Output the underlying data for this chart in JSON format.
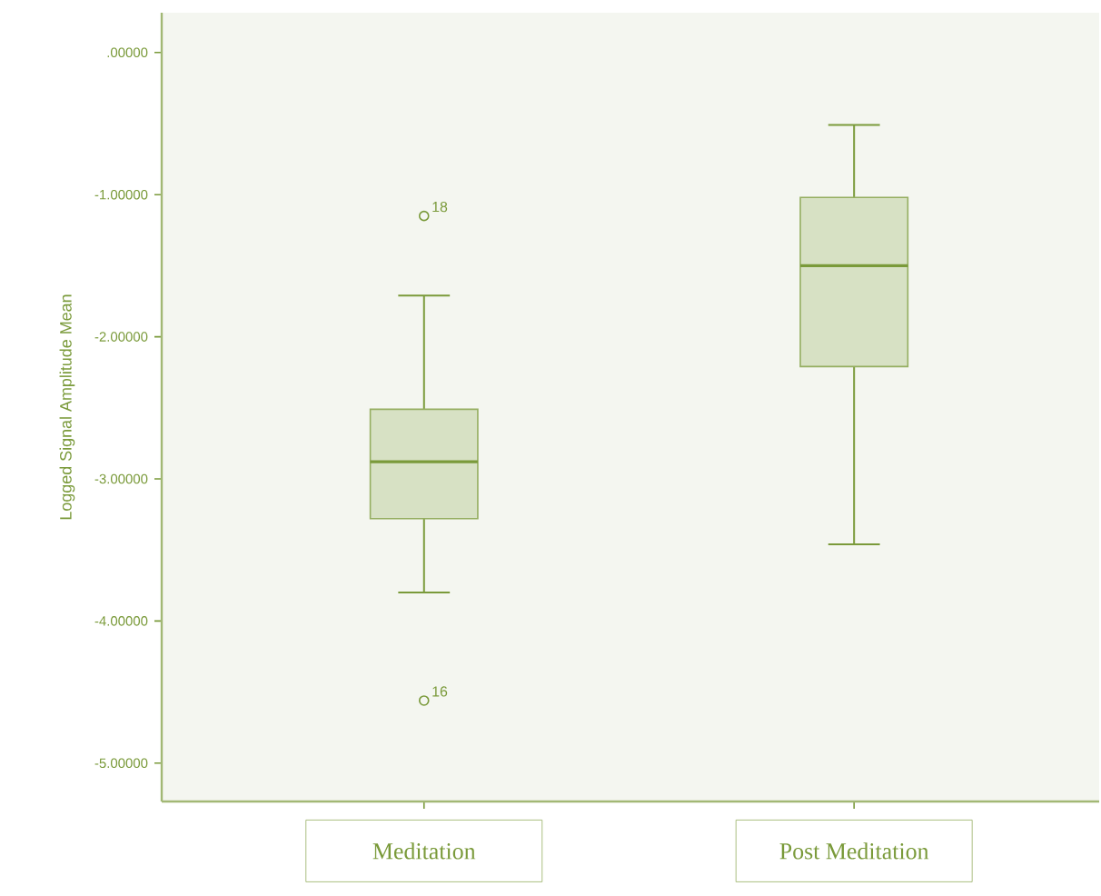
{
  "chart_data": {
    "type": "box",
    "ylabel": "Logged Signal Amplitude Mean",
    "categories": [
      "Meditation",
      "Post Meditation"
    ],
    "boxes": [
      {
        "low": -3.8,
        "q1": -3.28,
        "median": -2.88,
        "q3": -2.51,
        "high": -1.71,
        "outliers": [
          -1.15,
          -4.56
        ]
      },
      {
        "low": -3.46,
        "q1": -2.21,
        "median": -1.5,
        "q3": -1.02,
        "high": -0.51
      }
    ],
    "color": "#d7e1c4",
    "ylim": [
      -5.27,
      0.28
    ],
    "yticks": [
      {
        "value": 0,
        "label": ".00000"
      },
      {
        "value": -1,
        "label": "-1.00000"
      },
      {
        "value": -2,
        "label": "-2.00000"
      },
      {
        "value": -3,
        "label": "-3.00000"
      },
      {
        "value": -4,
        "label": "-4.00000"
      },
      {
        "value": -5,
        "label": "-5.00000"
      }
    ],
    "annotations": [
      "18",
      "16"
    ]
  }
}
